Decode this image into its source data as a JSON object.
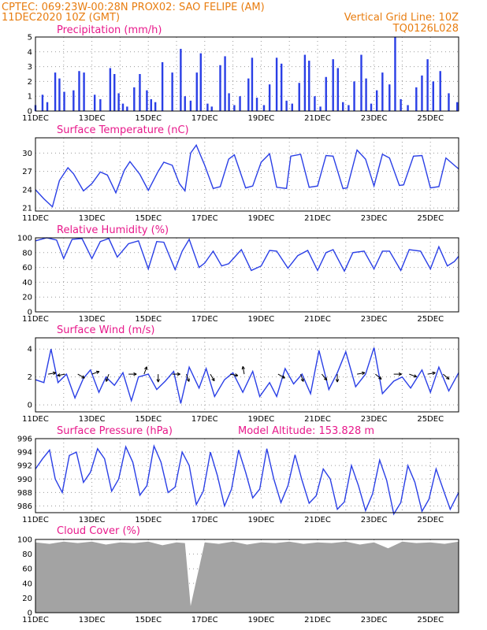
{
  "header": {
    "line1": "CPTEC:   069:23W-00:28N   PROX02: SAO FELIPE (AM)",
    "line2_left": "11DEC2020 10Z (GMT)",
    "line2_right": "Vertical Grid Line: 10Z",
    "line3_right": "TQ0126L028"
  },
  "x_tick_labels": [
    "11DEC",
    "13DEC",
    "15DEC",
    "17DEC",
    "19DEC",
    "21DEC",
    "23DEC",
    "25DEC"
  ],
  "colors": {
    "series": "#2a3fe6",
    "cloud": "#a3a3a3",
    "title": "#e8198b",
    "header": "#e87d10"
  },
  "chart_data": [
    {
      "type": "bar",
      "title": "Precipitation (mm/h)",
      "ylim": [
        0,
        5
      ],
      "yticks": [
        0,
        1,
        2,
        3,
        4,
        5
      ],
      "x": [
        0.0,
        0.25,
        0.42,
        0.7,
        0.85,
        1.02,
        1.35,
        1.55,
        1.72,
        2.1,
        2.3,
        2.65,
        2.8,
        2.95,
        3.1,
        3.25,
        3.5,
        3.7,
        3.95,
        4.1,
        4.25,
        4.5,
        4.85,
        5.15,
        5.3,
        5.5,
        5.72,
        5.86,
        6.1,
        6.25,
        6.55,
        6.72,
        6.86,
        7.05,
        7.25,
        7.55,
        7.68,
        7.85,
        8.1,
        8.3,
        8.55,
        8.72,
        8.9,
        9.1,
        9.35,
        9.55,
        9.7,
        9.9,
        10.1,
        10.3,
        10.55,
        10.72,
        10.9,
        11.1,
        11.3,
        11.55,
        11.72,
        11.9,
        12.1,
        12.3,
        12.55,
        12.75,
        12.95,
        13.2,
        13.5,
        13.7,
        13.9,
        14.1,
        14.35,
        14.65,
        14.95
      ],
      "values": [
        0.4,
        1.1,
        0.6,
        2.6,
        2.2,
        1.3,
        1.4,
        2.7,
        2.6,
        1.1,
        0.8,
        2.9,
        2.5,
        1.2,
        0.5,
        0.3,
        1.6,
        2.5,
        1.4,
        0.8,
        0.6,
        3.3,
        2.6,
        4.2,
        1.0,
        0.7,
        2.6,
        3.9,
        0.5,
        0.3,
        3.1,
        3.7,
        1.2,
        0.4,
        1.0,
        2.2,
        3.6,
        0.9,
        0.4,
        1.8,
        3.6,
        3.2,
        0.7,
        0.5,
        1.9,
        3.8,
        3.4,
        1.0,
        0.3,
        2.3,
        3.5,
        2.9,
        0.6,
        0.4,
        2.0,
        3.8,
        2.2,
        0.5,
        1.4,
        2.6,
        1.8,
        5.0,
        0.8,
        0.4,
        1.6,
        2.4,
        3.5,
        2.0,
        2.7,
        1.2,
        0.6
      ]
    },
    {
      "type": "line",
      "title": "Surface Temperature (nC)",
      "ylim": [
        20.5,
        32.5
      ],
      "yticks": [
        21,
        24,
        27,
        30
      ],
      "x": [
        0,
        0.3,
        0.6,
        0.85,
        1.15,
        1.35,
        1.7,
        2.0,
        2.3,
        2.55,
        2.85,
        3.15,
        3.35,
        3.7,
        4.0,
        4.35,
        4.55,
        4.85,
        5.1,
        5.3,
        5.5,
        5.7,
        6.0,
        6.3,
        6.55,
        6.85,
        7.05,
        7.45,
        7.7,
        8.0,
        8.3,
        8.55,
        8.9,
        9.05,
        9.4,
        9.7,
        10.0,
        10.3,
        10.55,
        10.9,
        11.05,
        11.4,
        11.7,
        12.0,
        12.3,
        12.55,
        12.9,
        13.05,
        13.4,
        13.7,
        14.0,
        14.3,
        14.55,
        14.85,
        15.0
      ],
      "values": [
        24.0,
        22.5,
        21.2,
        25.5,
        27.6,
        26.6,
        23.8,
        25.0,
        26.9,
        26.4,
        23.5,
        27.2,
        28.6,
        26.5,
        23.9,
        27.0,
        28.5,
        28.0,
        25.0,
        23.8,
        30.0,
        31.3,
        28.0,
        24.2,
        24.5,
        29.0,
        29.7,
        24.3,
        24.6,
        28.5,
        29.9,
        24.4,
        24.2,
        29.5,
        29.8,
        24.4,
        24.6,
        29.6,
        29.5,
        24.2,
        24.3,
        30.5,
        29.0,
        24.6,
        29.8,
        29.2,
        24.7,
        24.8,
        29.5,
        29.6,
        24.3,
        24.5,
        29.2,
        28.0,
        27.4
      ]
    },
    {
      "type": "line",
      "title": "Relative Humidity (%)",
      "ylim": [
        0,
        100
      ],
      "yticks": [
        0,
        20,
        40,
        60,
        80,
        100
      ],
      "x": [
        0,
        0.4,
        0.75,
        1.0,
        1.3,
        1.65,
        2.0,
        2.3,
        2.6,
        2.9,
        3.3,
        3.65,
        4.0,
        4.3,
        4.55,
        4.95,
        5.2,
        5.45,
        5.8,
        6.0,
        6.3,
        6.6,
        6.85,
        7.3,
        7.65,
        8.0,
        8.3,
        8.55,
        8.95,
        9.3,
        9.65,
        10.0,
        10.3,
        10.55,
        10.95,
        11.25,
        11.65,
        12.0,
        12.3,
        12.55,
        12.95,
        13.25,
        13.65,
        14.0,
        14.3,
        14.6,
        14.85,
        15.0
      ],
      "values": [
        96,
        100,
        97,
        72,
        98,
        99,
        72,
        95,
        99,
        74,
        92,
        96,
        58,
        95,
        94,
        57,
        82,
        98,
        60,
        66,
        82,
        62,
        65,
        84,
        56,
        62,
        83,
        82,
        59,
        76,
        83,
        56,
        80,
        84,
        55,
        80,
        82,
        58,
        82,
        82,
        56,
        84,
        82,
        58,
        88,
        62,
        68,
        75
      ]
    },
    {
      "type": "line",
      "title": "Surface Wind (m/s)",
      "ylim": [
        -0.5,
        4.8
      ],
      "yticks": [
        0,
        2,
        4
      ],
      "x": [
        0,
        0.3,
        0.55,
        0.8,
        1.1,
        1.4,
        1.7,
        1.95,
        2.25,
        2.5,
        2.8,
        3.1,
        3.4,
        3.65,
        4.0,
        4.3,
        4.6,
        4.9,
        5.15,
        5.45,
        5.8,
        6.05,
        6.35,
        6.7,
        7.0,
        7.35,
        7.7,
        7.95,
        8.3,
        8.55,
        8.85,
        9.15,
        9.45,
        9.75,
        10.05,
        10.4,
        10.7,
        11.0,
        11.35,
        11.7,
        12.0,
        12.3,
        12.7,
        13.0,
        13.3,
        13.7,
        14.0,
        14.3,
        14.65,
        15.0
      ],
      "values": [
        1.8,
        1.6,
        4.0,
        1.6,
        2.2,
        0.5,
        1.9,
        2.5,
        0.9,
        2.0,
        1.4,
        2.3,
        0.3,
        2.0,
        2.2,
        1.1,
        1.7,
        2.4,
        0.1,
        2.7,
        1.2,
        2.6,
        0.6,
        1.8,
        2.3,
        0.9,
        2.4,
        0.6,
        1.6,
        0.6,
        2.6,
        1.5,
        2.2,
        0.8,
        3.9,
        1.1,
        2.3,
        3.8,
        1.3,
        2.2,
        4.1,
        0.8,
        1.7,
        2.0,
        1.2,
        2.5,
        0.9,
        2.7,
        1.0,
        2.3
      ],
      "arrows": {
        "x": [
          0.45,
          1.05,
          1.5,
          2.0,
          2.6,
          3.3,
          3.85,
          4.35,
          4.85,
          5.35,
          6.2,
          6.9,
          7.4,
          8.6,
          9.4,
          10.15,
          10.7,
          11.4,
          12.05,
          12.7,
          13.25,
          13.9,
          14.45
        ],
        "dir_deg": [
          80,
          260,
          120,
          70,
          200,
          90,
          20,
          180,
          90,
          160,
          150,
          100,
          350,
          120,
          160,
          140,
          180,
          80,
          130,
          90,
          110,
          80,
          130
        ]
      }
    },
    {
      "type": "line",
      "title": "Surface Pressure (hPa)",
      "annotation": "Model Altitude: 153.828 m",
      "ylim": [
        985.0,
        996.0
      ],
      "yticks": [
        986,
        988,
        990,
        992,
        994,
        996
      ],
      "x": [
        0,
        0.25,
        0.5,
        0.7,
        0.95,
        1.2,
        1.45,
        1.7,
        1.95,
        2.2,
        2.45,
        2.7,
        2.95,
        3.2,
        3.45,
        3.7,
        3.95,
        4.2,
        4.45,
        4.7,
        4.95,
        5.2,
        5.45,
        5.7,
        5.95,
        6.2,
        6.45,
        6.7,
        6.95,
        7.2,
        7.45,
        7.7,
        7.95,
        8.2,
        8.45,
        8.7,
        8.95,
        9.2,
        9.45,
        9.7,
        9.95,
        10.2,
        10.45,
        10.7,
        10.95,
        11.2,
        11.45,
        11.7,
        11.95,
        12.2,
        12.45,
        12.7,
        12.95,
        13.2,
        13.45,
        13.7,
        13.95,
        14.2,
        14.45,
        14.7,
        15.0
      ],
      "values": [
        991.5,
        993.0,
        994.3,
        990.0,
        988.0,
        993.5,
        994.0,
        989.5,
        991.0,
        994.5,
        993.0,
        988.2,
        990.0,
        994.8,
        992.5,
        987.6,
        989.0,
        994.9,
        992.5,
        988.0,
        988.8,
        994.0,
        992.0,
        986.2,
        988.2,
        994.0,
        990.5,
        986.0,
        988.5,
        994.3,
        991.0,
        987.2,
        988.5,
        994.5,
        990.0,
        986.5,
        989.0,
        993.6,
        989.8,
        986.4,
        987.5,
        991.5,
        990.0,
        985.5,
        986.6,
        992.0,
        989.0,
        985.3,
        987.8,
        992.8,
        989.8,
        984.8,
        986.5,
        992.0,
        989.5,
        985.2,
        987.0,
        991.5,
        988.5,
        985.5,
        988.0
      ]
    },
    {
      "type": "area",
      "title": "Cloud Cover (%)",
      "ylim": [
        0,
        100
      ],
      "yticks": [
        0,
        20,
        40,
        60,
        80,
        100
      ],
      "x": [
        0,
        0.5,
        1.0,
        1.5,
        2.0,
        2.5,
        3.0,
        3.5,
        4.0,
        4.5,
        5.0,
        5.3,
        5.5,
        6.0,
        6.5,
        7.0,
        7.5,
        8.0,
        8.5,
        9.0,
        9.5,
        10.0,
        10.5,
        11.0,
        11.5,
        12.0,
        12.5,
        13.0,
        13.5,
        14.0,
        14.5,
        15.0
      ],
      "values": [
        96,
        94,
        97,
        95,
        97,
        93,
        96,
        95,
        97,
        92,
        96,
        95,
        9,
        96,
        94,
        97,
        93,
        96,
        95,
        97,
        94,
        96,
        95,
        97,
        93,
        96,
        88,
        97,
        95,
        96,
        94,
        97
      ]
    }
  ]
}
